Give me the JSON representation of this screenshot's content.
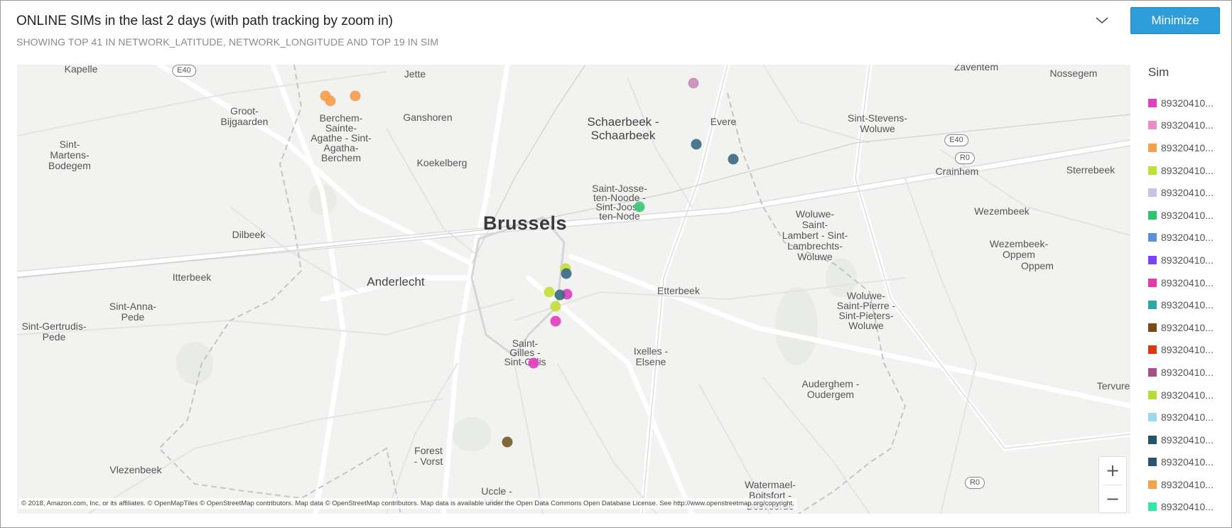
{
  "header": {
    "title": "ONLINE SIMs in the last 2 days (with path tracking by zoom in)",
    "subtitle": "SHOWING TOP 41 IN NETWORK_LATITUDE, NETWORK_LONGITUDE AND TOP 19 IN SIM",
    "minimize_label": "Minimize",
    "chevron_icon": "chevron-down-icon"
  },
  "map": {
    "city": "Brussels",
    "places": {
      "kapelle": "Kapelle",
      "jette": "Jette",
      "zaventem": "Zaventem",
      "nossegem": "Nossegem",
      "groot_bijgaarden": "Groot-\nBijgaarden",
      "berchem": "Berchem-\nSainte-\nAgathe - Sint-\nAgatha-\nBerchem",
      "ganshoren": "Ganshoren",
      "schaerbeek": "Schaerbeek -\nSchaarbeek",
      "evere": "Evere",
      "sint_stevens": "Sint-Stevens-\nWoluwe",
      "sint_martens": "Sint-\nMartens-\nBodegem",
      "koekelberg": "Koekelberg",
      "saint_josse": "Saint-Josse-\nten-Noode -\nSint-Joost-\nten-Node",
      "crainhem": "Crainhem",
      "sterrebeek": "Sterrebeek",
      "woluwe_lambert": "Woluwe-\nSaint-\nLambert - Sint-\nLambrechts-\nWoluwe",
      "wezembeek": "Wezembeek",
      "dilbeek": "Dilbeek",
      "wezembeek_oppem": "Wezembeek-\nOppem",
      "oppem": "Oppem",
      "itterbeek": "Itterbeek",
      "anderlecht": "Anderlecht",
      "etterbeek": "Etterbeek",
      "sint_anna": "Sint-Anna-\nPede",
      "woluwe_pierre": "Woluwe-\nSaint-Pierre -\nSint-Pieters-\nWoluwe",
      "sint_gertrudis": "Sint-Gertrudis-\nPede",
      "saint_gilles": "Saint-\nGilles -\nSint-Gillis",
      "ixelles": "Ixelles -\nElsene",
      "tervuren": "Tervuren",
      "auderghem": "Auderghem -\nOudergem",
      "forest": "Forest\n- Vorst",
      "vlezenbeek": "Vlezenbeek",
      "uccle": "Uccle -\nUkkel",
      "watermael": "Watermael-\nBoitsfort -\nBosvoorde"
    },
    "road_shields": {
      "e40_west": "E40",
      "e40_east": "E40",
      "r0_east": "R0",
      "r0_south": "R0"
    },
    "zoom_in_label": "+",
    "zoom_out_label": "−",
    "attribution": "© 2018, Amazon.com, Inc. or its affiliates. © OpenMapTiles © OpenStreetMap contributors. Map data © OpenStreetMap contributors. Map data is available under the Open Data Commons Open Database License. See http://www.openstreetmap.org/copyright."
  },
  "legend": {
    "title": "Sim",
    "items": [
      {
        "label": "89320410...",
        "color": "#e040c0"
      },
      {
        "label": "89320410...",
        "color": "#e98cc8"
      },
      {
        "label": "89320410...",
        "color": "#f5a04e"
      },
      {
        "label": "89320410...",
        "color": "#bde03a"
      },
      {
        "label": "89320410...",
        "color": "#c4c4e4"
      },
      {
        "label": "89320410...",
        "color": "#2ec46e"
      },
      {
        "label": "89320410...",
        "color": "#5b8ee0"
      },
      {
        "label": "89320410...",
        "color": "#7a44f0"
      },
      {
        "label": "89320410...",
        "color": "#e23aa6"
      },
      {
        "label": "89320410...",
        "color": "#2aa9a6"
      },
      {
        "label": "89320410...",
        "color": "#7a4a14"
      },
      {
        "label": "89320410...",
        "color": "#d93b10"
      },
      {
        "label": "89320410...",
        "color": "#a84f84"
      },
      {
        "label": "89320410...",
        "color": "#b5dc37"
      },
      {
        "label": "89320410...",
        "color": "#9ed8ec"
      },
      {
        "label": "89320410...",
        "color": "#24546c"
      },
      {
        "label": "89320410...",
        "color": "#2a5470"
      },
      {
        "label": "89320410...",
        "color": "#f5a04e"
      },
      {
        "label": "89320410...",
        "color": "#2ee8a4"
      }
    ]
  },
  "markers": [
    {
      "color": "#f5a04e"
    },
    {
      "color": "#f5a04e"
    },
    {
      "color": "#f5a04e"
    },
    {
      "color": "#c98cbc"
    },
    {
      "color": "#3e6a86"
    },
    {
      "color": "#3e6a86"
    },
    {
      "color": "#3ec87c"
    },
    {
      "color": "#c4e03c"
    },
    {
      "color": "#3e6a86"
    },
    {
      "color": "#c4e03c"
    },
    {
      "color": "#e040c0"
    },
    {
      "color": "#3e6a86"
    },
    {
      "color": "#c4e03c"
    },
    {
      "color": "#e040c0"
    },
    {
      "color": "#e040c0"
    },
    {
      "color": "#7a5a2a"
    }
  ]
}
